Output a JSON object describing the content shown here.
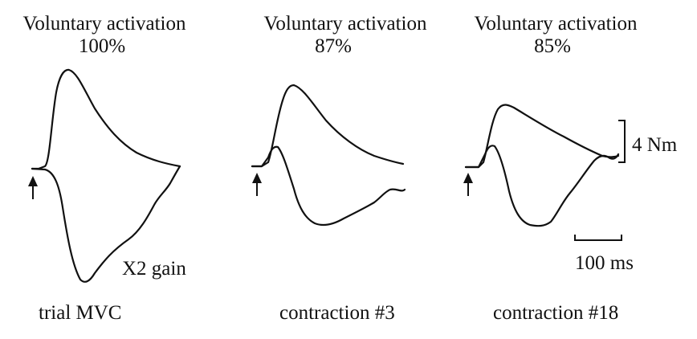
{
  "panels": [
    {
      "title": "Voluntary activation",
      "value": "100%",
      "caption": "trial MVC",
      "gain_label": "X2 gain"
    },
    {
      "title": "Voluntary activation",
      "value": "87%",
      "caption": "contraction #3"
    },
    {
      "title": "Voluntary activation",
      "value": "85%",
      "caption": "contraction #18"
    }
  ],
  "scale_bars": {
    "torque": "4 Nm",
    "time": "100 ms"
  }
}
